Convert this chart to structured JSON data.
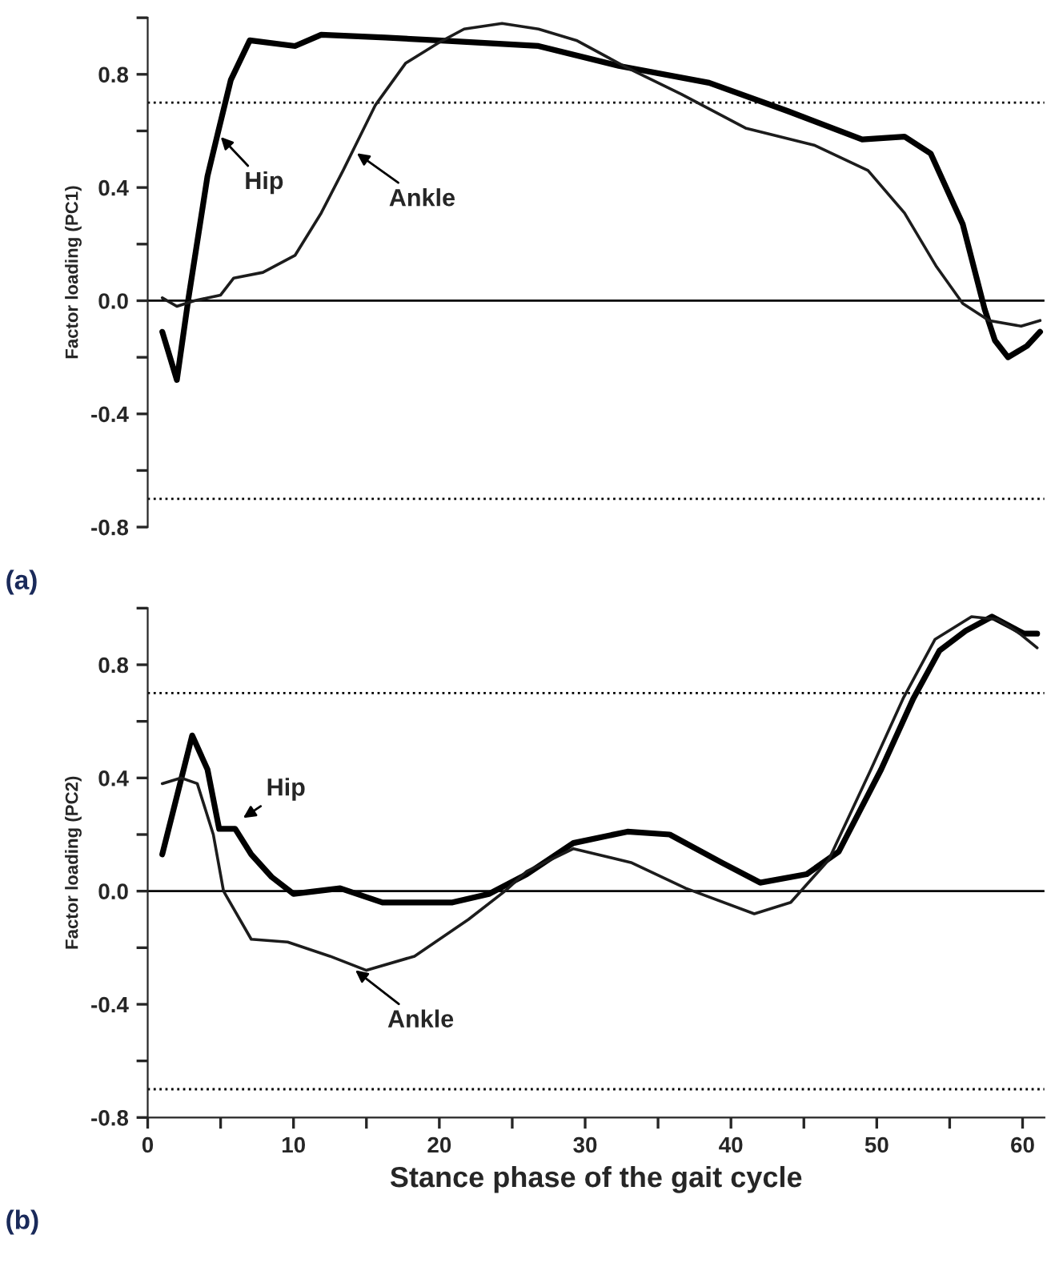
{
  "chart_data": [
    {
      "type": "line",
      "ylabel": "Factor loading (PC1)",
      "xlim": [
        0,
        61.5
      ],
      "ylim": [
        -0.8,
        1.0
      ],
      "yticks": [
        {
          "value": 1.0,
          "label": null
        },
        {
          "value": 0.8,
          "label": "0.8"
        },
        {
          "value": 0.6,
          "label": null
        },
        {
          "value": 0.4,
          "label": "0.4"
        },
        {
          "value": 0.2,
          "label": null
        },
        {
          "value": 0,
          "label": "0.0"
        },
        {
          "value": -0.2,
          "label": null
        },
        {
          "value": -0.4,
          "label": "-0.4"
        },
        {
          "value": -0.6,
          "label": null
        },
        {
          "value": -0.8,
          "label": "-0.8"
        }
      ],
      "tick_labels": "y",
      "grid": false,
      "legend": false,
      "marker": "none",
      "line_style": "solid",
      "series": [
        {
          "color": "#000000",
          "x": [
            1,
            2.0,
            2.8,
            4.1,
            4.8,
            5.7,
            7.0,
            10.1,
            11.9,
            16.3,
            19.9,
            26.8,
            32.3,
            38.5,
            43.9,
            49.0,
            51.9,
            53.7,
            55.9,
            57.4,
            58.1,
            59.0,
            60.3,
            61.2
          ],
          "values": [
            -0.11,
            -0.28,
            0.01,
            0.44,
            0.59,
            0.78,
            0.92,
            0.9,
            0.94,
            0.93,
            0.92,
            0.9,
            0.83,
            0.77,
            0.67,
            0.57,
            0.58,
            0.52,
            0.27,
            -0.03,
            -0.14,
            -0.2,
            -0.16,
            -0.11
          ]
        },
        {
          "color": "#1c1c1c",
          "x": [
            1,
            2,
            3.2,
            5.0,
            5.9,
            7.9,
            10.1,
            11.9,
            13.4,
            15.6,
            17.7,
            19.9,
            21.7,
            24.3,
            26.8,
            29.4,
            33.0,
            36.6,
            41.0,
            45.7,
            49.4,
            51.9,
            54.1,
            55.9,
            57.7,
            59.9,
            61.2
          ],
          "values": [
            0.01,
            -0.02,
            0.0,
            0.02,
            0.08,
            0.1,
            0.16,
            0.31,
            0.46,
            0.69,
            0.84,
            0.91,
            0.96,
            0.98,
            0.96,
            0.92,
            0.82,
            0.73,
            0.61,
            0.55,
            0.46,
            0.31,
            0.12,
            -0.01,
            -0.07,
            -0.09,
            -0.07
          ]
        }
      ],
      "ref_lines": [
        {
          "axis": "y",
          "value": 0,
          "line_style": "solid"
        },
        {
          "axis": "y",
          "value": 0.7,
          "line_style": "dotted"
        },
        {
          "axis": "y",
          "value": -0.7,
          "line_style": "dotted"
        }
      ],
      "annotations": [
        {
          "text": "Hip",
          "x": 4.8,
          "y": 0.59
        },
        {
          "text": "Ankle",
          "x": 14.1,
          "y": 0.53
        },
        "(a)"
      ]
    },
    {
      "type": "line",
      "ylabel": "Factor loading (PC2)",
      "xlabel": "Stance phase of the gait cycle",
      "xlim": [
        0,
        61.5
      ],
      "ylim": [
        -0.8,
        1.0
      ],
      "xticks": [
        0,
        {
          "value": 5,
          "label": null
        },
        10,
        {
          "value": 15,
          "label": null
        },
        20,
        {
          "value": 25,
          "label": null
        },
        30,
        {
          "value": 35,
          "label": null
        },
        40,
        {
          "value": 45,
          "label": null
        },
        50,
        {
          "value": 55,
          "label": null
        },
        60
      ],
      "yticks": [
        {
          "value": 1.0,
          "label": null
        },
        {
          "value": 0.8,
          "label": "0.8"
        },
        {
          "value": 0.6,
          "label": null
        },
        {
          "value": 0.4,
          "label": "0.4"
        },
        {
          "value": 0.2,
          "label": null
        },
        {
          "value": 0,
          "label": "0.0"
        },
        {
          "value": -0.2,
          "label": null
        },
        {
          "value": -0.4,
          "label": "-0.4"
        },
        {
          "value": -0.6,
          "label": null
        },
        {
          "value": -0.8,
          "label": "-0.8"
        }
      ],
      "grid": false,
      "legend": false,
      "marker": "none",
      "line_style": "solid",
      "series": [
        {
          "color": "#000000",
          "x": [
            1,
            3.05,
            4.1,
            4.9,
            6.0,
            7.1,
            8.5,
            10.0,
            13.2,
            16.1,
            20.9,
            23.4,
            26.0,
            29.2,
            32.9,
            35.8,
            39.4,
            42.0,
            45.2,
            47.4,
            50.3,
            52.5,
            54.3,
            56.1,
            57.9,
            60.1,
            61.0
          ],
          "values": [
            0.13,
            0.55,
            0.43,
            0.22,
            0.22,
            0.13,
            0.05,
            -0.01,
            0.01,
            -0.04,
            -0.04,
            -0.01,
            0.06,
            0.17,
            0.21,
            0.2,
            0.1,
            0.03,
            0.06,
            0.14,
            0.43,
            0.68,
            0.85,
            0.92,
            0.97,
            0.91,
            0.91
          ]
        },
        {
          "color": "#1c1c1c",
          "x": [
            1,
            2.3,
            3.4,
            4.5,
            5.2,
            7.1,
            9.6,
            12.5,
            15.0,
            18.3,
            22.0,
            24.5,
            26.0,
            29.2,
            33.2,
            36.9,
            41.6,
            44.1,
            46.7,
            49.6,
            51.8,
            54.0,
            56.5,
            58.3,
            59.8,
            61.0
          ],
          "values": [
            0.38,
            0.4,
            0.38,
            0.2,
            0.0,
            -0.17,
            -0.18,
            -0.23,
            -0.28,
            -0.23,
            -0.1,
            0.0,
            0.07,
            0.15,
            0.1,
            0.01,
            -0.08,
            -0.04,
            0.11,
            0.43,
            0.68,
            0.89,
            0.97,
            0.96,
            0.91,
            0.86
          ]
        }
      ],
      "ref_lines": [
        {
          "axis": "y",
          "value": 0,
          "line_style": "solid"
        },
        {
          "axis": "y",
          "value": 0.7,
          "line_style": "dotted"
        },
        {
          "axis": "y",
          "value": -0.7,
          "line_style": "dotted"
        }
      ],
      "annotations": [
        {
          "text": "Hip",
          "x": 6.3,
          "y": 0.25
        },
        {
          "text": "Ankle",
          "x": 14.0,
          "y": -0.27
        },
        "(b)"
      ]
    }
  ]
}
